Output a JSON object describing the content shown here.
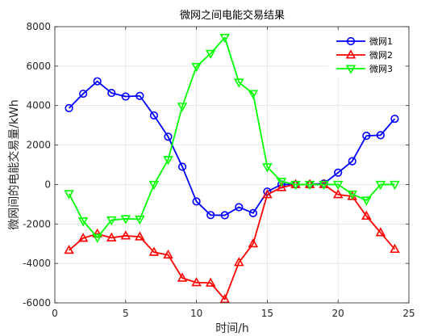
{
  "chart_data": {
    "type": "line",
    "title": "微网之间电能交易结果",
    "xlabel": "时间/h",
    "ylabel": "微网间的电能交易量/kWh",
    "xlim": [
      0,
      25
    ],
    "ylim": [
      -6000,
      8000
    ],
    "xticks": [
      0,
      5,
      10,
      15,
      20,
      25
    ],
    "yticks": [
      -6000,
      -4000,
      -2000,
      0,
      2000,
      4000,
      6000,
      8000
    ],
    "grid": true,
    "legend_position": "top-right",
    "x": [
      1,
      2,
      3,
      4,
      5,
      6,
      7,
      8,
      9,
      10,
      11,
      12,
      13,
      14,
      15,
      16,
      17,
      18,
      19,
      20,
      21,
      22,
      23,
      24
    ],
    "series": [
      {
        "name": "微网1",
        "color": "#0000ff",
        "marker": "circle",
        "values": [
          3870,
          4600,
          5230,
          4640,
          4460,
          4490,
          3500,
          2420,
          900,
          -860,
          -1550,
          -1560,
          -1150,
          -1450,
          -360,
          0,
          0,
          0,
          50,
          600,
          1180,
          2470,
          2500,
          3330
        ]
      },
      {
        "name": "微网2",
        "color": "#ff0000",
        "marker": "triangle-up",
        "values": [
          -3330,
          -2720,
          -2500,
          -2700,
          -2600,
          -2650,
          -3430,
          -3570,
          -4740,
          -4970,
          -4990,
          -5820,
          -3950,
          -3000,
          -510,
          -150,
          0,
          0,
          0,
          -510,
          -600,
          -1600,
          -2440,
          -3280
        ]
      },
      {
        "name": "微网3",
        "color": "#00ff00",
        "marker": "triangle-down",
        "values": [
          -470,
          -1850,
          -2690,
          -1800,
          -1740,
          -1760,
          0,
          1260,
          3960,
          5980,
          6640,
          7450,
          5180,
          4600,
          890,
          150,
          0,
          0,
          0,
          0,
          -490,
          -800,
          0,
          0
        ]
      }
    ]
  }
}
